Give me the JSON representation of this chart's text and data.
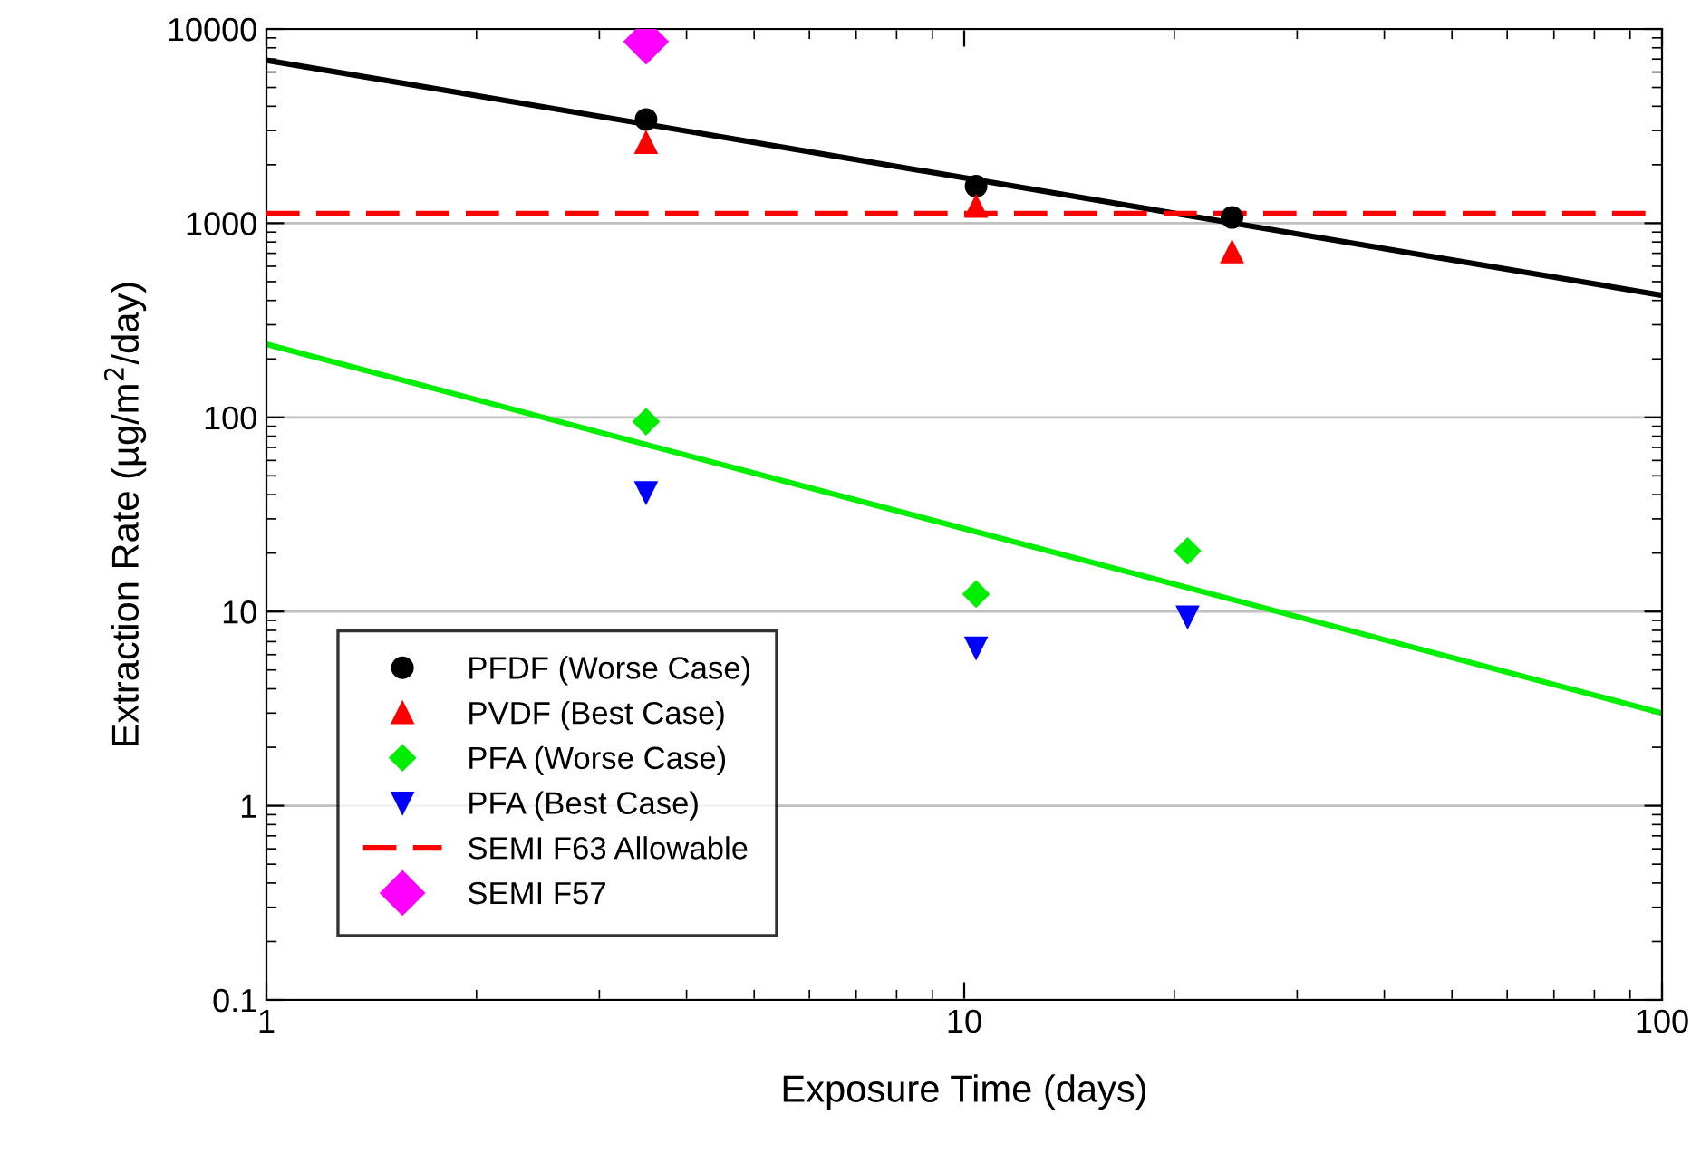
{
  "chart_data": {
    "type": "scatter",
    "xlabel": "Exposure Time (days)",
    "ylabel": "Extraction Rate (µg/m$^{2}$/day)",
    "log": "xy",
    "xlim": [
      1,
      100
    ],
    "ylim": [
      0.1,
      10000
    ],
    "xticks": [
      1,
      10,
      100
    ],
    "yticks": [
      0.1,
      1,
      10,
      100,
      1000,
      10000
    ],
    "grid": "y",
    "legend": "bottom left",
    "series": [
      {
        "name": "PFDF (Worse Case)",
        "color": "#000000",
        "marker": "circle",
        "x": [
          3.5,
          10.4,
          24.2
        ],
        "values": [
          3420,
          1550,
          1070
        ]
      },
      {
        "name": "PVDF (Best Case)",
        "color": "#ff0000",
        "marker": "triangle",
        "x": [
          3.5,
          10.4,
          24.2
        ],
        "values": [
          2600,
          1220,
          710
        ]
      },
      {
        "name": "PFA (Worse Case)",
        "color": "#00ee00",
        "marker": "diamond",
        "x": [
          3.5,
          10.4,
          20.9
        ],
        "values": [
          95,
          12.3,
          20.5
        ]
      },
      {
        "name": "PFA (Best Case)",
        "color": "#0000ff",
        "marker": "triangle_down",
        "x": [
          3.5,
          10.4,
          20.9
        ],
        "values": [
          41,
          6.5,
          9.4
        ]
      },
      {
        "name": "SEMI F57",
        "color": "#ff00ff",
        "marker": "diamond",
        "x": [
          3.5
        ],
        "values": [
          8600
        ]
      },
      {
        "type": "line",
        "color": "#000000",
        "x": [
          1,
          100
        ],
        "values": [
          6900,
          425
        ]
      },
      {
        "type": "line",
        "color": "#00ee00",
        "x": [
          1,
          100
        ],
        "values": [
          238,
          3.0
        ]
      }
    ],
    "ref_lines": [
      {
        "axis": "y",
        "value": 1120,
        "label": "SEMI F63 Allowable",
        "color": "#ff0000",
        "line_style": "dashed"
      }
    ]
  }
}
